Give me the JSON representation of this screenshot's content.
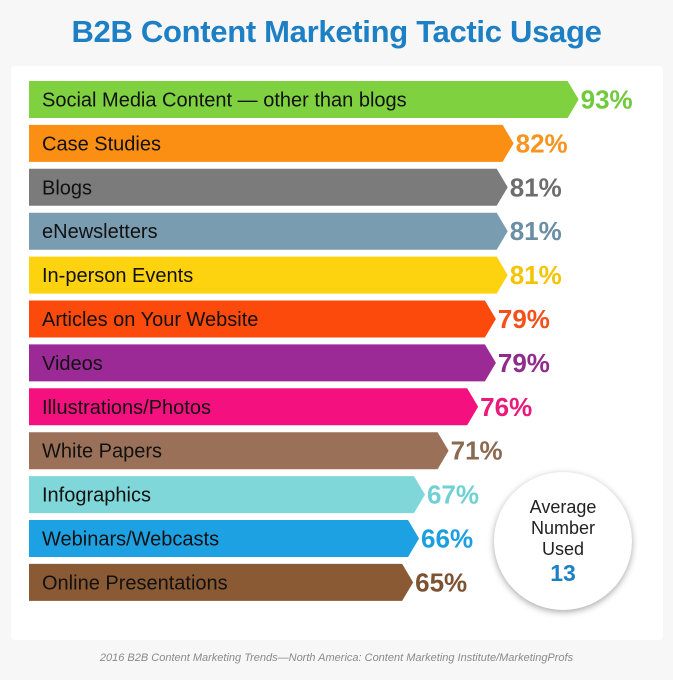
{
  "title": "B2B Content Marketing Tactic Usage",
  "source": "2016 B2B Content Marketing Trends—North America: Content Marketing Institute/MarketingProfs",
  "average": {
    "label": "Average Number Used",
    "value": "13"
  },
  "chart_data": {
    "type": "bar",
    "orientation": "horizontal",
    "title": "B2B Content Marketing Tactic Usage",
    "categories": [
      "Social Media Content — other than blogs",
      "Case Studies",
      "Blogs",
      "eNewsletters",
      "In-person Events",
      "Articles on Your Website",
      "Videos",
      "Illustrations/Photos",
      "White Papers",
      "Infographics",
      "Webinars/Webcasts",
      "Online Presentations"
    ],
    "values": [
      93,
      82,
      81,
      81,
      81,
      79,
      79,
      76,
      71,
      67,
      66,
      65
    ],
    "value_labels": [
      "93%",
      "82%",
      "81%",
      "81%",
      "81%",
      "79%",
      "79%",
      "76%",
      "71%",
      "67%",
      "66%",
      "65%"
    ],
    "unit": "%",
    "colors": [
      "#7fd140",
      "#fb8f13",
      "#7b7b7b",
      "#7a9cb0",
      "#fdd20f",
      "#fc4a0d",
      "#9b2a97",
      "#f4107e",
      "#9a7158",
      "#7fd7d9",
      "#1da1e2",
      "#8a5a35"
    ],
    "label_colors": [
      "#6fcb3c",
      "#f7941d",
      "#6d6d6d",
      "#6a8ea3",
      "#f5c400",
      "#f2511b",
      "#8f2b8c",
      "#ea1a7c",
      "#8b6a52",
      "#6fd1d3",
      "#1b9fe0",
      "#7d5232"
    ],
    "grid": false,
    "axes_visible": false
  }
}
